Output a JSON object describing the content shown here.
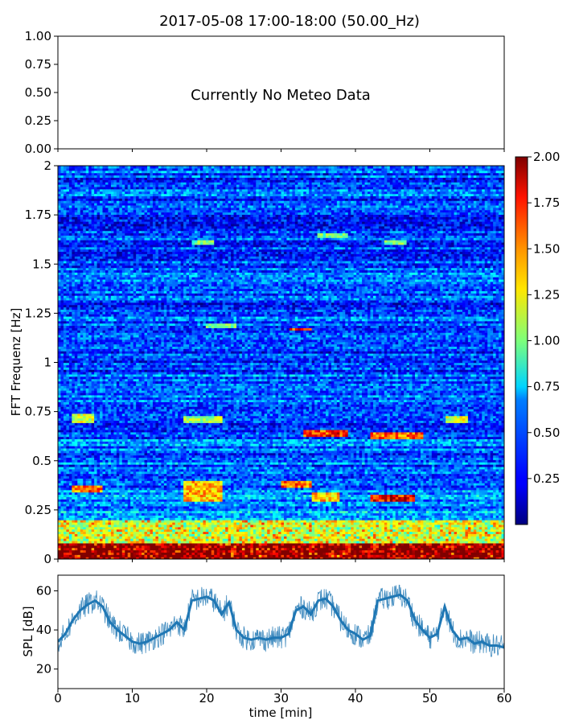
{
  "figure": {
    "title": "2017-05-08 17:00-18:00 (50.00_Hz)"
  },
  "chart_data": [
    {
      "type": "line",
      "panel": "meteo",
      "title": "",
      "xlabel": "",
      "ylabel": "",
      "ylim": [
        0,
        1
      ],
      "yticks": [
        "0.00",
        "0.25",
        "0.50",
        "0.75",
        "1.00"
      ],
      "xlim": [
        0,
        60
      ],
      "annotation": "Currently No Meteo Data",
      "series": []
    },
    {
      "type": "heatmap",
      "panel": "spectrogram",
      "xlabel": "",
      "ylabel": "FFT Frequenz [Hz]",
      "xlim": [
        0,
        60
      ],
      "ylim": [
        0,
        2
      ],
      "yticks": [
        "0",
        "0.25",
        "0.5",
        "0.75",
        "1",
        "1.25",
        "1.5",
        "1.75",
        "2"
      ],
      "colormap": "jet",
      "colorbar": {
        "range": [
          0,
          2
        ],
        "ticks": [
          "0.25",
          "0.50",
          "0.75",
          "1.00",
          "1.25",
          "1.50",
          "1.75",
          "2.00"
        ]
      },
      "features": [
        {
          "x": [
            0,
            60
          ],
          "f": [
            0,
            0.08
          ],
          "value": 1.9
        },
        {
          "x": [
            0,
            60
          ],
          "f": [
            0.08,
            0.2
          ],
          "value": 1.1
        },
        {
          "x": [
            2,
            6
          ],
          "f": [
            0.34,
            0.38
          ],
          "value": 1.6
        },
        {
          "x": [
            17,
            22
          ],
          "f": [
            0.3,
            0.4
          ],
          "value": 1.4
        },
        {
          "x": [
            30,
            34
          ],
          "f": [
            0.37,
            0.4
          ],
          "value": 1.6
        },
        {
          "x": [
            34,
            38
          ],
          "f": [
            0.3,
            0.34
          ],
          "value": 1.4
        },
        {
          "x": [
            42,
            48
          ],
          "f": [
            0.3,
            0.33
          ],
          "value": 1.8
        },
        {
          "x": [
            2,
            5
          ],
          "f": [
            0.7,
            0.74
          ],
          "value": 1.2
        },
        {
          "x": [
            17,
            22
          ],
          "f": [
            0.7,
            0.73
          ],
          "value": 1.1
        },
        {
          "x": [
            33,
            39
          ],
          "f": [
            0.62,
            0.66
          ],
          "value": 1.7
        },
        {
          "x": [
            42,
            49
          ],
          "f": [
            0.61,
            0.65
          ],
          "value": 1.6
        },
        {
          "x": [
            52,
            55
          ],
          "f": [
            0.7,
            0.73
          ],
          "value": 1.2
        },
        {
          "x": [
            31,
            34
          ],
          "f": [
            1.16,
            1.18
          ],
          "value": 1.7
        },
        {
          "x": [
            20,
            24
          ],
          "f": [
            1.18,
            1.2
          ],
          "value": 1.0
        },
        {
          "x": [
            18,
            21
          ],
          "f": [
            1.6,
            1.62
          ],
          "value": 1.0
        },
        {
          "x": [
            44,
            47
          ],
          "f": [
            1.6,
            1.62
          ],
          "value": 1.0
        },
        {
          "x": [
            35,
            39
          ],
          "f": [
            1.64,
            1.66
          ],
          "value": 1.0
        }
      ]
    },
    {
      "type": "line",
      "panel": "spl",
      "xlabel": "time [min]",
      "ylabel": "SPL [dB]",
      "xlim": [
        0,
        60
      ],
      "ylim": [
        10,
        68
      ],
      "xticks": [
        "0",
        "10",
        "20",
        "30",
        "40",
        "50",
        "60"
      ],
      "yticks": [
        "20",
        "40",
        "60"
      ],
      "series": [
        {
          "color": "#1f77b4",
          "x": [
            0,
            1,
            2,
            3,
            4,
            5,
            6,
            7,
            8,
            9,
            10,
            11,
            12,
            13,
            14,
            15,
            16,
            17,
            18,
            19,
            20,
            21,
            22,
            23,
            24,
            25,
            26,
            27,
            28,
            29,
            30,
            31,
            32,
            33,
            34,
            35,
            36,
            37,
            38,
            39,
            40,
            41,
            42,
            43,
            44,
            45,
            46,
            47,
            48,
            49,
            50,
            51,
            52,
            53,
            54,
            55,
            56,
            57,
            58,
            59,
            60
          ],
          "y": [
            34,
            38,
            45,
            50,
            53,
            55,
            52,
            44,
            40,
            37,
            34,
            33,
            34,
            36,
            38,
            40,
            44,
            40,
            55,
            56,
            57,
            55,
            48,
            54,
            40,
            36,
            35,
            36,
            35,
            36,
            36,
            38,
            50,
            52,
            48,
            55,
            56,
            52,
            45,
            40,
            38,
            35,
            37,
            55,
            56,
            57,
            58,
            55,
            45,
            40,
            36,
            38,
            52,
            40,
            35,
            36,
            33,
            34,
            32,
            32,
            31
          ]
        }
      ]
    }
  ]
}
